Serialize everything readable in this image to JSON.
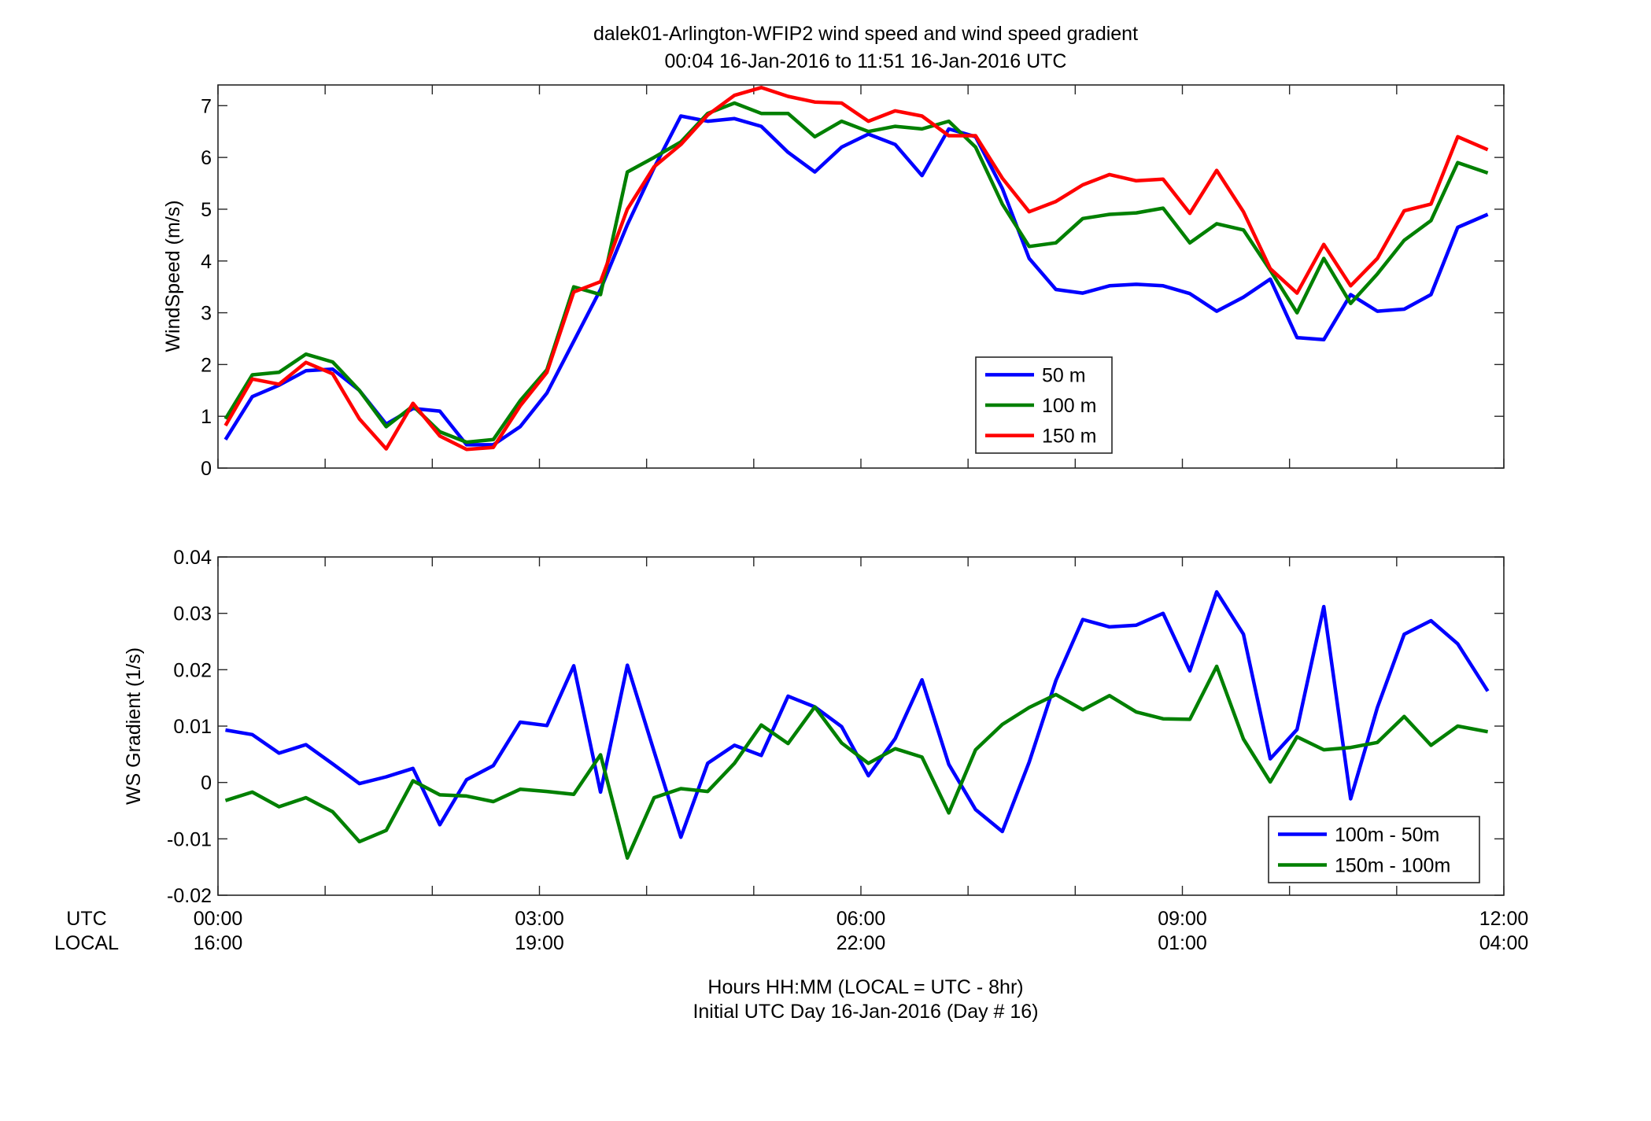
{
  "title": {
    "line1": "dalek01-Arlington-WFIP2  wind speed and wind speed gradient",
    "line2": "00:04 16-Jan-2016 to 11:51 16-Jan-2016  UTC"
  },
  "xaxis": {
    "utc_label": "UTC",
    "local_label": "LOCAL",
    "ticks_hours": [
      0,
      3,
      6,
      9,
      12
    ],
    "utc_ticks": [
      "00:00",
      "03:00",
      "06:00",
      "09:00",
      "12:00"
    ],
    "local_ticks": [
      "16:00",
      "19:00",
      "22:00",
      "01:00",
      "04:00"
    ],
    "label_line1": "Hours HH:MM  (LOCAL = UTC - 8hr)",
    "label_line2": "Initial UTC Day 16-Jan-2016 (Day # 16)",
    "xlim": [
      0,
      12
    ]
  },
  "chart_data": [
    {
      "type": "line",
      "ylabel": "WindSpeed (m/s)",
      "ylim": [
        0,
        7.4
      ],
      "yticks": [
        0,
        1,
        2,
        3,
        4,
        5,
        6,
        7
      ],
      "ytick_labels": [
        "0",
        "1",
        "2",
        "3",
        "4",
        "5",
        "6",
        "7"
      ],
      "legend_position": "center-right",
      "x_hours": [
        0.07,
        0.32,
        0.57,
        0.82,
        1.07,
        1.32,
        1.57,
        1.82,
        2.07,
        2.32,
        2.57,
        2.82,
        3.07,
        3.32,
        3.57,
        3.82,
        4.07,
        4.32,
        4.57,
        4.82,
        5.07,
        5.32,
        5.57,
        5.82,
        6.07,
        6.32,
        6.57,
        6.82,
        7.07,
        7.32,
        7.57,
        7.82,
        8.07,
        8.32,
        8.57,
        8.82,
        9.07,
        9.32,
        9.57,
        9.82,
        10.07,
        10.32,
        10.57,
        10.82,
        11.07,
        11.32,
        11.57,
        11.85
      ],
      "series": [
        {
          "name": "50 m",
          "color": "#0000ff",
          "values": [
            0.55,
            1.38,
            1.6,
            1.88,
            1.91,
            1.5,
            0.85,
            1.15,
            1.1,
            0.45,
            0.45,
            0.8,
            1.45,
            2.45,
            3.45,
            4.7,
            5.8,
            6.8,
            6.7,
            6.75,
            6.6,
            6.1,
            5.72,
            6.2,
            6.45,
            6.25,
            5.65,
            6.55,
            6.4,
            5.4,
            4.05,
            3.45,
            3.38,
            3.52,
            3.55,
            3.52,
            3.37,
            3.03,
            3.3,
            3.65,
            2.52,
            2.48,
            3.35,
            3.03,
            3.07,
            3.35,
            4.65,
            4.9
          ]
        },
        {
          "name": "100 m",
          "color": "#008000",
          "values": [
            0.95,
            1.8,
            1.85,
            2.2,
            2.05,
            1.5,
            0.8,
            1.2,
            0.7,
            0.5,
            0.55,
            1.3,
            1.9,
            3.5,
            3.35,
            5.72,
            6.0,
            6.3,
            6.85,
            7.05,
            6.85,
            6.85,
            6.4,
            6.7,
            6.5,
            6.6,
            6.55,
            6.7,
            6.2,
            5.1,
            4.28,
            4.35,
            4.82,
            4.9,
            4.93,
            5.02,
            4.35,
            4.72,
            4.6,
            3.82,
            3.0,
            4.05,
            3.18,
            3.75,
            4.4,
            4.78,
            5.9,
            5.7
          ]
        },
        {
          "name": "150 m",
          "color": "#ff0000",
          "values": [
            0.82,
            1.72,
            1.62,
            2.04,
            1.82,
            0.95,
            0.37,
            1.25,
            0.62,
            0.36,
            0.4,
            1.2,
            1.85,
            3.4,
            3.6,
            5.0,
            5.82,
            6.25,
            6.82,
            7.2,
            7.35,
            7.18,
            7.07,
            7.05,
            6.7,
            6.9,
            6.8,
            6.42,
            6.42,
            5.6,
            4.95,
            5.15,
            5.47,
            5.67,
            5.55,
            5.58,
            4.92,
            5.75,
            4.95,
            3.85,
            3.38,
            4.32,
            3.52,
            4.05,
            4.97,
            5.1,
            6.4,
            6.15
          ]
        }
      ]
    },
    {
      "type": "line",
      "ylabel": "WS Gradient (1/s)",
      "ylim": [
        -0.02,
        0.04
      ],
      "yticks": [
        -0.02,
        -0.01,
        0,
        0.01,
        0.02,
        0.03,
        0.04
      ],
      "ytick_labels": [
        "-0.02",
        "-0.01",
        "0",
        "0.01",
        "0.02",
        "0.03",
        "0.04"
      ],
      "legend_position": "bottom-right",
      "x_hours": [
        0.07,
        0.32,
        0.57,
        0.82,
        1.07,
        1.32,
        1.57,
        1.82,
        2.07,
        2.32,
        2.57,
        2.82,
        3.07,
        3.32,
        3.57,
        3.82,
        4.07,
        4.32,
        4.57,
        4.82,
        5.07,
        5.32,
        5.57,
        5.82,
        6.07,
        6.32,
        6.57,
        6.82,
        7.07,
        7.32,
        7.57,
        7.82,
        8.07,
        8.32,
        8.57,
        8.82,
        9.07,
        9.32,
        9.57,
        9.82,
        10.07,
        10.32,
        10.57,
        10.82,
        11.07,
        11.32,
        11.57,
        11.85
      ],
      "series": [
        {
          "name": "100m - 50m",
          "color": "#0000ff",
          "values": [
            0.0093,
            0.0085,
            0.0052,
            0.0067,
            0.0033,
            -0.0002,
            0.001,
            0.0025,
            -0.0075,
            0.0005,
            0.003,
            0.0107,
            0.0101,
            0.0207,
            -0.0017,
            0.0208,
            0.0055,
            -0.0097,
            0.0034,
            0.0066,
            0.0048,
            0.0153,
            0.0134,
            0.0099,
            0.0012,
            0.0078,
            0.0182,
            0.0032,
            -0.0048,
            -0.0087,
            0.0036,
            0.0181,
            0.0289,
            0.0276,
            0.0279,
            0.03,
            0.0198,
            0.0338,
            0.0263,
            0.0042,
            0.0094,
            0.0312,
            -0.0029,
            0.0133,
            0.0263,
            0.0287,
            0.0246,
            0.0162
          ]
        },
        {
          "name": "150m - 100m",
          "color": "#008000",
          "values": [
            -0.0032,
            -0.0017,
            -0.0043,
            -0.0027,
            -0.0052,
            -0.0105,
            -0.0085,
            0.0003,
            -0.0022,
            -0.0024,
            -0.0034,
            -0.0012,
            -0.0016,
            -0.0021,
            0.0049,
            -0.0134,
            -0.0027,
            -0.0011,
            -0.0016,
            0.0034,
            0.0102,
            0.0069,
            0.0134,
            0.007,
            0.0034,
            0.006,
            0.0045,
            -0.0054,
            0.0058,
            0.0103,
            0.0133,
            0.0156,
            0.0129,
            0.0154,
            0.0125,
            0.0113,
            0.0112,
            0.0206,
            0.0077,
            0.0001,
            0.0081,
            0.0058,
            0.0062,
            0.0071,
            0.0117,
            0.0066,
            0.01,
            0.009
          ]
        }
      ]
    }
  ]
}
